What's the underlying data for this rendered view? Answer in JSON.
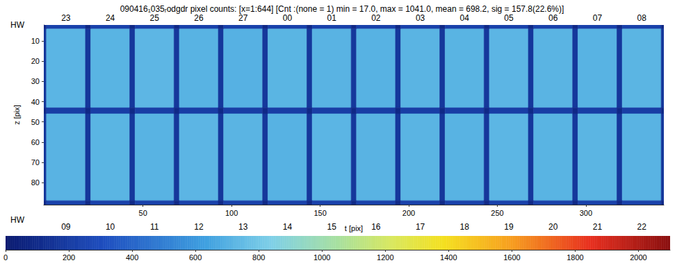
{
  "chart_data": {
    "type": "heatmap",
    "title": "090416₁035ᵣodgdr pixel counts: [x=1:644] [Cnt :(none = 1) min = 17.0, max = 1041.0, mean = 698.2, sig = 157.8(22.6%)]",
    "xlabel": "t [pix]",
    "ylabel": "z [pix]",
    "xlim": [
      -6,
      344
    ],
    "xticks": [
      50,
      100,
      150,
      200,
      250,
      300
    ],
    "ylim": [
      91,
      2
    ],
    "yticks": [
      10,
      20,
      30,
      40,
      50,
      60,
      70,
      80
    ],
    "hw_top": {
      "title": "HW",
      "labels": [
        "23",
        "24",
        "25",
        "26",
        "27",
        "00",
        "01",
        "02",
        "03",
        "04",
        "05",
        "06",
        "07",
        "08"
      ]
    },
    "hw_bottom": {
      "title": "HW",
      "labels": [
        "09",
        "10",
        "11",
        "12",
        "13",
        "14",
        "15",
        "16",
        "17",
        "18",
        "19",
        "20",
        "21",
        "22"
      ]
    },
    "x_edges": [
      -6,
      -4.5,
      17.5,
      20.5,
      42.5,
      45.5,
      67.5,
      70.5,
      92.5,
      95.5,
      117.5,
      120.5,
      142.5,
      145.5,
      167.5,
      170.5,
      192.5,
      195.5,
      217.5,
      220.5,
      242.5,
      245.5,
      267.5,
      270.5,
      292.5,
      295.5,
      317.5,
      320.5,
      342.5,
      344
    ],
    "z_edges": [
      2,
      4,
      43,
      46,
      89,
      91
    ],
    "cells": [
      [
        90,
        230,
        90,
        230,
        90,
        230,
        90,
        230,
        90,
        230,
        90,
        230,
        90,
        230,
        90,
        230,
        90,
        230,
        90,
        230,
        90,
        230,
        90,
        230,
        90,
        230,
        90,
        230,
        90
      ],
      [
        170,
        722,
        170,
        716,
        170,
        728,
        170,
        711,
        170,
        706,
        170,
        720,
        170,
        714,
        170,
        709,
        170,
        719,
        170,
        716,
        170,
        724,
        170,
        718,
        170,
        713,
        170,
        721,
        170
      ],
      [
        90,
        210,
        90,
        210,
        90,
        210,
        90,
        210,
        90,
        210,
        90,
        210,
        90,
        210,
        90,
        210,
        90,
        210,
        90,
        210,
        90,
        210,
        90,
        210,
        90,
        210,
        90,
        210,
        90
      ],
      [
        170,
        715,
        170,
        720,
        170,
        711,
        170,
        724,
        170,
        717,
        170,
        708,
        170,
        722,
        170,
        715,
        170,
        719,
        170,
        712,
        170,
        726,
        170,
        716,
        170,
        721,
        170,
        714,
        170
      ],
      [
        90,
        230,
        90,
        230,
        90,
        230,
        90,
        230,
        90,
        230,
        90,
        230,
        90,
        230,
        90,
        230,
        90,
        230,
        90,
        230,
        90,
        230,
        90,
        230,
        90,
        230,
        90,
        230,
        90
      ]
    ],
    "colorbar": {
      "range": [
        0,
        2100
      ],
      "ticks": [
        0,
        200,
        400,
        600,
        800,
        1000,
        1200,
        1400,
        1600,
        1800,
        2000
      ]
    }
  }
}
